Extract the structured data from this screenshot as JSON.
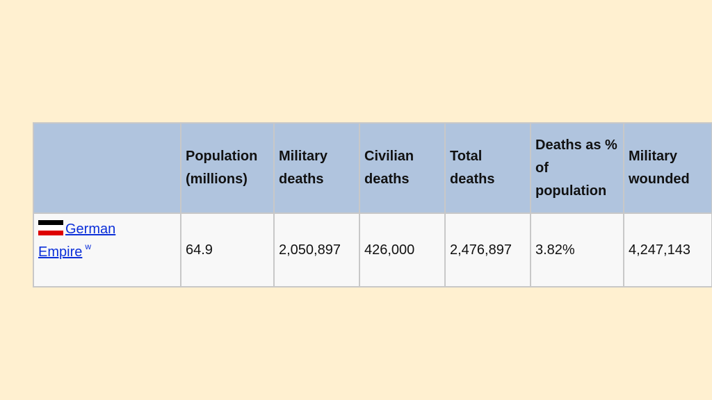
{
  "table": {
    "headers": [
      "",
      "Population (millions)",
      "Military deaths",
      "Civilian deaths",
      "Total deaths",
      "Deaths as % of population",
      "Military wounded"
    ],
    "row": {
      "country_line1": "German",
      "country_line2": "Empire",
      "country_sup": "w",
      "flag_colors": [
        "#000000",
        "#ffffff",
        "#dd0000"
      ],
      "population": "64.9",
      "military_deaths": "2,050,897",
      "civilian_deaths": "426,000",
      "total_deaths": "2,476,897",
      "deaths_pct": "3.82%",
      "military_wounded": "4,247,143"
    }
  }
}
